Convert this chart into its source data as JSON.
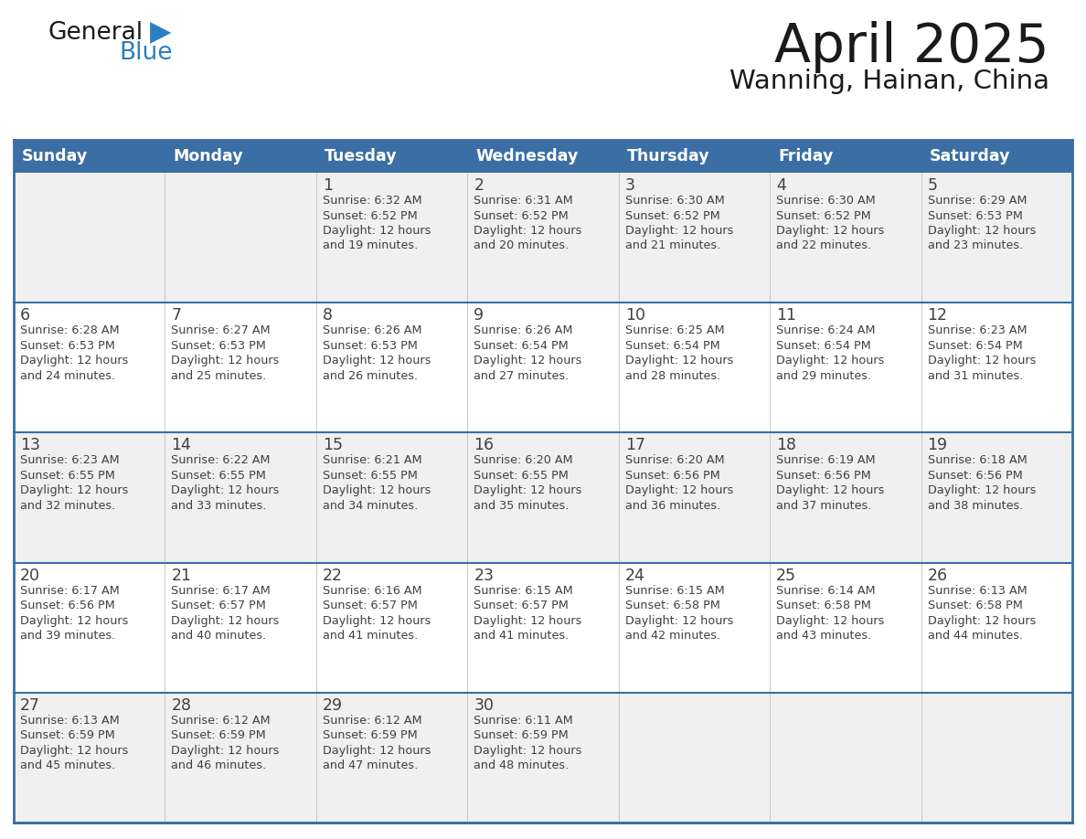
{
  "title": "April 2025",
  "subtitle": "Wanning, Hainan, China",
  "days_of_week": [
    "Sunday",
    "Monday",
    "Tuesday",
    "Wednesday",
    "Thursday",
    "Friday",
    "Saturday"
  ],
  "header_bg": "#3a6ea5",
  "header_text": "#ffffff",
  "border_color": "#3a6ea5",
  "divider_color": "#3a6ea5",
  "text_color": "#404040",
  "title_color": "#1a1a1a",
  "logo_general_color": "#1a1a1a",
  "logo_blue_color": "#2b7ec1",
  "row_bg_odd": "#f0f0f0",
  "row_bg_even": "#ffffff",
  "weeks": [
    [
      {
        "day": null,
        "sunrise": null,
        "sunset": null,
        "daylight_min": null
      },
      {
        "day": null,
        "sunrise": null,
        "sunset": null,
        "daylight_min": null
      },
      {
        "day": 1,
        "sunrise": "6:32 AM",
        "sunset": "6:52 PM",
        "daylight_min": 19
      },
      {
        "day": 2,
        "sunrise": "6:31 AM",
        "sunset": "6:52 PM",
        "daylight_min": 20
      },
      {
        "day": 3,
        "sunrise": "6:30 AM",
        "sunset": "6:52 PM",
        "daylight_min": 21
      },
      {
        "day": 4,
        "sunrise": "6:30 AM",
        "sunset": "6:52 PM",
        "daylight_min": 22
      },
      {
        "day": 5,
        "sunrise": "6:29 AM",
        "sunset": "6:53 PM",
        "daylight_min": 23
      }
    ],
    [
      {
        "day": 6,
        "sunrise": "6:28 AM",
        "sunset": "6:53 PM",
        "daylight_min": 24
      },
      {
        "day": 7,
        "sunrise": "6:27 AM",
        "sunset": "6:53 PM",
        "daylight_min": 25
      },
      {
        "day": 8,
        "sunrise": "6:26 AM",
        "sunset": "6:53 PM",
        "daylight_min": 26
      },
      {
        "day": 9,
        "sunrise": "6:26 AM",
        "sunset": "6:54 PM",
        "daylight_min": 27
      },
      {
        "day": 10,
        "sunrise": "6:25 AM",
        "sunset": "6:54 PM",
        "daylight_min": 28
      },
      {
        "day": 11,
        "sunrise": "6:24 AM",
        "sunset": "6:54 PM",
        "daylight_min": 29
      },
      {
        "day": 12,
        "sunrise": "6:23 AM",
        "sunset": "6:54 PM",
        "daylight_min": 31
      }
    ],
    [
      {
        "day": 13,
        "sunrise": "6:23 AM",
        "sunset": "6:55 PM",
        "daylight_min": 32
      },
      {
        "day": 14,
        "sunrise": "6:22 AM",
        "sunset": "6:55 PM",
        "daylight_min": 33
      },
      {
        "day": 15,
        "sunrise": "6:21 AM",
        "sunset": "6:55 PM",
        "daylight_min": 34
      },
      {
        "day": 16,
        "sunrise": "6:20 AM",
        "sunset": "6:55 PM",
        "daylight_min": 35
      },
      {
        "day": 17,
        "sunrise": "6:20 AM",
        "sunset": "6:56 PM",
        "daylight_min": 36
      },
      {
        "day": 18,
        "sunrise": "6:19 AM",
        "sunset": "6:56 PM",
        "daylight_min": 37
      },
      {
        "day": 19,
        "sunrise": "6:18 AM",
        "sunset": "6:56 PM",
        "daylight_min": 38
      }
    ],
    [
      {
        "day": 20,
        "sunrise": "6:17 AM",
        "sunset": "6:56 PM",
        "daylight_min": 39
      },
      {
        "day": 21,
        "sunrise": "6:17 AM",
        "sunset": "6:57 PM",
        "daylight_min": 40
      },
      {
        "day": 22,
        "sunrise": "6:16 AM",
        "sunset": "6:57 PM",
        "daylight_min": 41
      },
      {
        "day": 23,
        "sunrise": "6:15 AM",
        "sunset": "6:57 PM",
        "daylight_min": 41
      },
      {
        "day": 24,
        "sunrise": "6:15 AM",
        "sunset": "6:58 PM",
        "daylight_min": 42
      },
      {
        "day": 25,
        "sunrise": "6:14 AM",
        "sunset": "6:58 PM",
        "daylight_min": 43
      },
      {
        "day": 26,
        "sunrise": "6:13 AM",
        "sunset": "6:58 PM",
        "daylight_min": 44
      }
    ],
    [
      {
        "day": 27,
        "sunrise": "6:13 AM",
        "sunset": "6:59 PM",
        "daylight_min": 45
      },
      {
        "day": 28,
        "sunrise": "6:12 AM",
        "sunset": "6:59 PM",
        "daylight_min": 46
      },
      {
        "day": 29,
        "sunrise": "6:12 AM",
        "sunset": "6:59 PM",
        "daylight_min": 47
      },
      {
        "day": 30,
        "sunrise": "6:11 AM",
        "sunset": "6:59 PM",
        "daylight_min": 48
      },
      {
        "day": null,
        "sunrise": null,
        "sunset": null,
        "daylight_min": null
      },
      {
        "day": null,
        "sunrise": null,
        "sunset": null,
        "daylight_min": null
      },
      {
        "day": null,
        "sunrise": null,
        "sunset": null,
        "daylight_min": null
      }
    ]
  ]
}
